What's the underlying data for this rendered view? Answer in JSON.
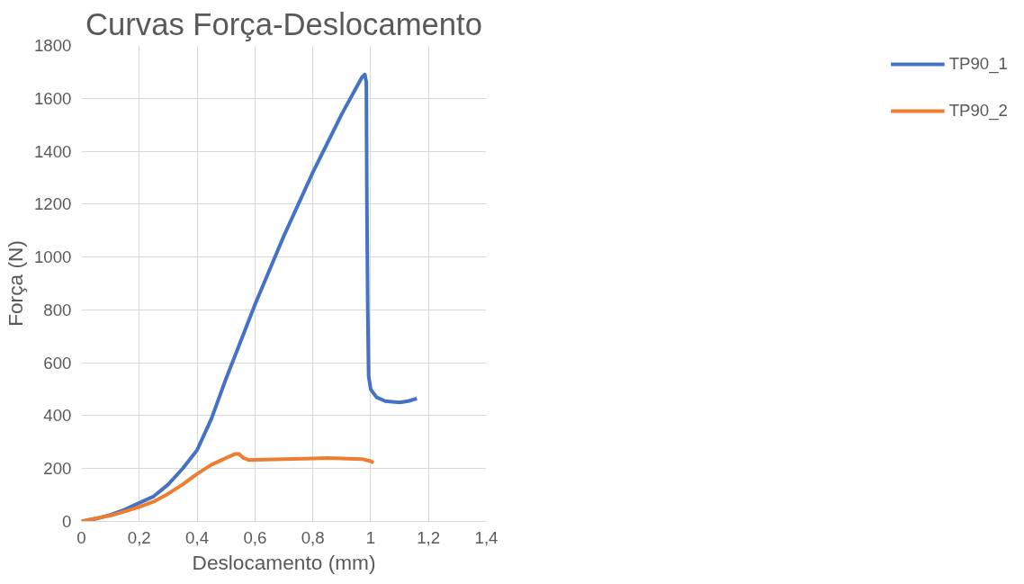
{
  "chart_data": {
    "type": "line",
    "title": "Curvas Força-Deslocamento",
    "xlabel": "Deslocamento (mm)",
    "ylabel": "Força (N)",
    "xlim": [
      0,
      1.4
    ],
    "xticks": [
      {
        "value": 0,
        "label": "0"
      },
      {
        "value": 0.2,
        "label": "0,2"
      },
      {
        "value": 0.4,
        "label": "0,4"
      },
      {
        "value": 0.6,
        "label": "0,6"
      },
      {
        "value": 0.8,
        "label": "0,8"
      },
      {
        "value": 1,
        "label": "1"
      },
      {
        "value": 1.2,
        "label": "1,2"
      },
      {
        "value": 1.4,
        "label": "1,4"
      }
    ],
    "ylim": [
      0,
      1800
    ],
    "yticks": [
      0,
      200,
      400,
      600,
      800,
      1000,
      1200,
      1400,
      1600,
      1800
    ],
    "grid": true,
    "legend": "right",
    "marker": "none",
    "line_style": "solid",
    "series": [
      {
        "name": "TP90_1",
        "color": "#4472c4",
        "x": [
          0,
          0.05,
          0.1,
          0.15,
          0.2,
          0.25,
          0.3,
          0.35,
          0.4,
          0.45,
          0.5,
          0.55,
          0.6,
          0.65,
          0.7,
          0.75,
          0.8,
          0.85,
          0.9,
          0.95,
          0.97,
          0.98,
          0.985,
          0.987,
          0.99,
          0.993,
          1.0,
          1.02,
          1.05,
          1.1,
          1.13,
          1.16
        ],
        "values": [
          0,
          10,
          25,
          45,
          70,
          95,
          140,
          200,
          270,
          390,
          540,
          680,
          820,
          950,
          1080,
          1200,
          1320,
          1430,
          1540,
          1640,
          1680,
          1690,
          1660,
          1200,
          800,
          550,
          500,
          470,
          455,
          450,
          455,
          465
        ]
      },
      {
        "name": "TP90_2",
        "color": "#ed7d31",
        "x": [
          0,
          0.05,
          0.1,
          0.15,
          0.2,
          0.25,
          0.3,
          0.35,
          0.4,
          0.45,
          0.5,
          0.53,
          0.545,
          0.56,
          0.58,
          0.6,
          0.7,
          0.8,
          0.85,
          0.9,
          0.97,
          1.0,
          1.01
        ],
        "values": [
          0,
          12,
          22,
          38,
          55,
          75,
          105,
          140,
          180,
          215,
          240,
          255,
          255,
          240,
          232,
          233,
          236,
          238,
          240,
          238,
          236,
          228,
          222
        ]
      }
    ]
  }
}
